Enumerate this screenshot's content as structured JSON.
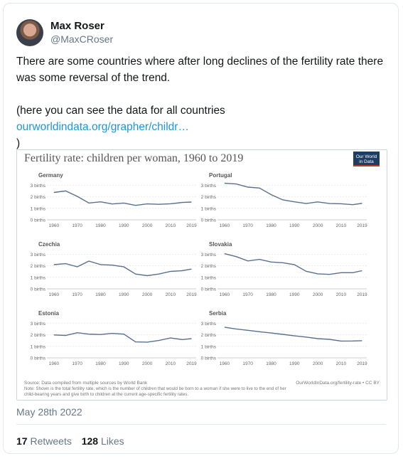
{
  "author": {
    "name": "Max Roser",
    "handle": "@MaxCRoser"
  },
  "tweet": {
    "text_line1": "There are some countries where after long declines of the fertility rate there was some reversal of the trend.",
    "text_line2": "(here you can see the data for all countries",
    "link": "ourworldindata.org/grapher/childr…",
    "text_close": ")",
    "date": "May 28th 2022",
    "retweets_count": "17",
    "retweets_label": "Retweets",
    "likes_count": "128",
    "likes_label": "Likes"
  },
  "figure": {
    "title": "Fertility rate: children per woman, 1960 to 2019",
    "logo_line1": "Our World",
    "logo_line2": "in Data",
    "source": "Source: Data compiled from multiple sources by World Bank",
    "note_line1": "Note: Shown is the total fertility rate, which is the number of children that would be born to a woman if she were to live to the end of her",
    "note_line2": "child-bearing years and give birth to children at the current age-specific fertility rates.",
    "attribution": "OurWorldInData.org/fertility-rate • CC BY",
    "y_tick_labels": [
      "0 births",
      "1 births",
      "2 births",
      "3 births"
    ],
    "x_tick_labels": [
      "1960",
      "1970",
      "1980",
      "1990",
      "2000",
      "2010",
      "2019"
    ],
    "line_color": "#5b6f8f"
  },
  "chart_data": [
    {
      "type": "line",
      "title": "Germany",
      "ylim": [
        0,
        3.2
      ],
      "x": [
        1960,
        1965,
        1970,
        1975,
        1980,
        1985,
        1990,
        1995,
        2000,
        2005,
        2010,
        2015,
        2019
      ],
      "values": [
        2.37,
        2.5,
        2.03,
        1.45,
        1.56,
        1.37,
        1.45,
        1.25,
        1.38,
        1.34,
        1.39,
        1.5,
        1.54
      ]
    },
    {
      "type": "line",
      "title": "Portugal",
      "ylim": [
        0,
        3.2
      ],
      "x": [
        1960,
        1965,
        1970,
        1975,
        1980,
        1985,
        1990,
        1995,
        2000,
        2005,
        2010,
        2015,
        2019
      ],
      "values": [
        3.16,
        3.1,
        2.83,
        2.75,
        2.18,
        1.72,
        1.56,
        1.41,
        1.55,
        1.41,
        1.39,
        1.31,
        1.43
      ]
    },
    {
      "type": "line",
      "title": "Czechia",
      "ylim": [
        0,
        3.2
      ],
      "x": [
        1960,
        1965,
        1970,
        1975,
        1980,
        1985,
        1990,
        1995,
        2000,
        2005,
        2010,
        2015,
        2019
      ],
      "values": [
        2.09,
        2.18,
        1.91,
        2.4,
        2.1,
        2.05,
        1.9,
        1.28,
        1.14,
        1.28,
        1.51,
        1.57,
        1.71
      ]
    },
    {
      "type": "line",
      "title": "Slovakia",
      "ylim": [
        0,
        3.2
      ],
      "x": [
        1960,
        1965,
        1970,
        1975,
        1980,
        1985,
        1990,
        1995,
        2000,
        2005,
        2010,
        2015,
        2019
      ],
      "values": [
        3.04,
        2.79,
        2.41,
        2.55,
        2.32,
        2.26,
        2.09,
        1.52,
        1.3,
        1.25,
        1.4,
        1.4,
        1.57
      ]
    },
    {
      "type": "line",
      "title": "Estonia",
      "ylim": [
        0,
        3.2
      ],
      "x": [
        1960,
        1965,
        1970,
        1975,
        1980,
        1985,
        1990,
        1995,
        2000,
        2005,
        2010,
        2015,
        2019
      ],
      "values": [
        1.98,
        1.94,
        2.17,
        2.05,
        2.02,
        2.12,
        2.05,
        1.38,
        1.36,
        1.5,
        1.72,
        1.58,
        1.66
      ]
    },
    {
      "type": "line",
      "title": "Serbia",
      "ylim": [
        0,
        3.2
      ],
      "x": [
        1960,
        1965,
        1970,
        1975,
        1980,
        1985,
        1990,
        1995,
        2000,
        2005,
        2010,
        2015,
        2019
      ],
      "values": [
        2.65,
        2.5,
        2.38,
        2.26,
        2.15,
        2.03,
        1.9,
        1.8,
        1.66,
        1.6,
        1.45,
        1.46,
        1.48
      ]
    }
  ]
}
